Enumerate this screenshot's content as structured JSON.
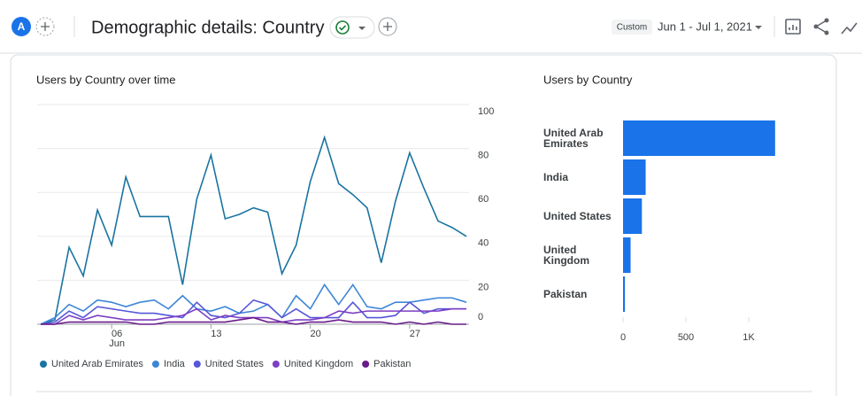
{
  "header": {
    "avatar": "A",
    "title": "Demographic details: Country",
    "date_chip": "Custom",
    "date_range": "Jun 1 - Jul 1, 2021"
  },
  "chart_data": [
    {
      "type": "line",
      "title": "Users by Country over time",
      "x": [
        1,
        2,
        3,
        4,
        5,
        6,
        7,
        8,
        9,
        10,
        11,
        12,
        13,
        14,
        15,
        16,
        17,
        18,
        19,
        20,
        21,
        22,
        23,
        24,
        25,
        26,
        27,
        28,
        29,
        30,
        31
      ],
      "xlim": [
        1,
        31
      ],
      "xticks": [
        {
          "value": 6,
          "label": "06"
        },
        13,
        20,
        27
      ],
      "x_month_label": "Jun",
      "ylim": [
        0,
        100
      ],
      "yticks": [
        100,
        80,
        60,
        40,
        20,
        0
      ],
      "grid": true,
      "legend": "bottom",
      "series": [
        {
          "name": "United Arab Emirates",
          "color": "#1a73a0",
          "values": [
            0,
            2,
            35,
            22,
            52,
            36,
            67,
            49,
            49,
            49,
            18,
            57,
            77,
            48,
            50,
            53,
            51,
            23,
            36,
            65,
            85,
            64,
            59,
            53,
            28,
            56,
            78,
            62,
            47,
            44,
            40
          ]
        },
        {
          "name": "India",
          "color": "#3c86d8",
          "values": [
            0,
            3,
            9,
            6,
            11,
            10,
            8,
            10,
            11,
            7,
            13,
            7,
            6,
            8,
            5,
            6,
            9,
            3,
            13,
            7,
            18,
            9,
            18,
            8,
            7,
            10,
            10,
            11,
            12,
            12,
            10
          ]
        },
        {
          "name": "United States",
          "color": "#5656d9",
          "values": [
            0,
            1,
            6,
            3,
            8,
            7,
            6,
            5,
            5,
            4,
            3,
            10,
            4,
            3,
            5,
            11,
            9,
            3,
            7,
            3,
            3,
            3,
            10,
            3,
            3,
            4,
            10,
            5,
            7,
            7,
            7
          ]
        },
        {
          "name": "United Kingdom",
          "color": "#7d3fc4",
          "values": [
            0,
            0,
            4,
            2,
            4,
            3,
            2,
            2,
            2,
            3,
            4,
            7,
            2,
            4,
            3,
            3,
            3,
            1,
            2,
            2,
            3,
            6,
            5,
            6,
            6,
            6,
            6,
            6,
            6,
            7,
            7
          ]
        },
        {
          "name": "Pakistan",
          "color": "#6a1b8a",
          "values": [
            0,
            0,
            1,
            1,
            1,
            1,
            1,
            0,
            0,
            1,
            1,
            1,
            1,
            1,
            2,
            3,
            1,
            1,
            0,
            1,
            1,
            2,
            1,
            1,
            1,
            0,
            1,
            0,
            1,
            0,
            0
          ]
        }
      ]
    },
    {
      "type": "hbar",
      "title": "Users by Country",
      "categories": [
        "United Arab Emirates",
        "India",
        "United States",
        "United Kingdom",
        "Pakistan"
      ],
      "values": [
        1210,
        180,
        150,
        60,
        15
      ],
      "color": "#1a73e8",
      "xlim": [
        0,
        1500
      ],
      "xticks": [
        0,
        500,
        {
          "value": 1000,
          "label": "1K"
        }
      ]
    }
  ]
}
